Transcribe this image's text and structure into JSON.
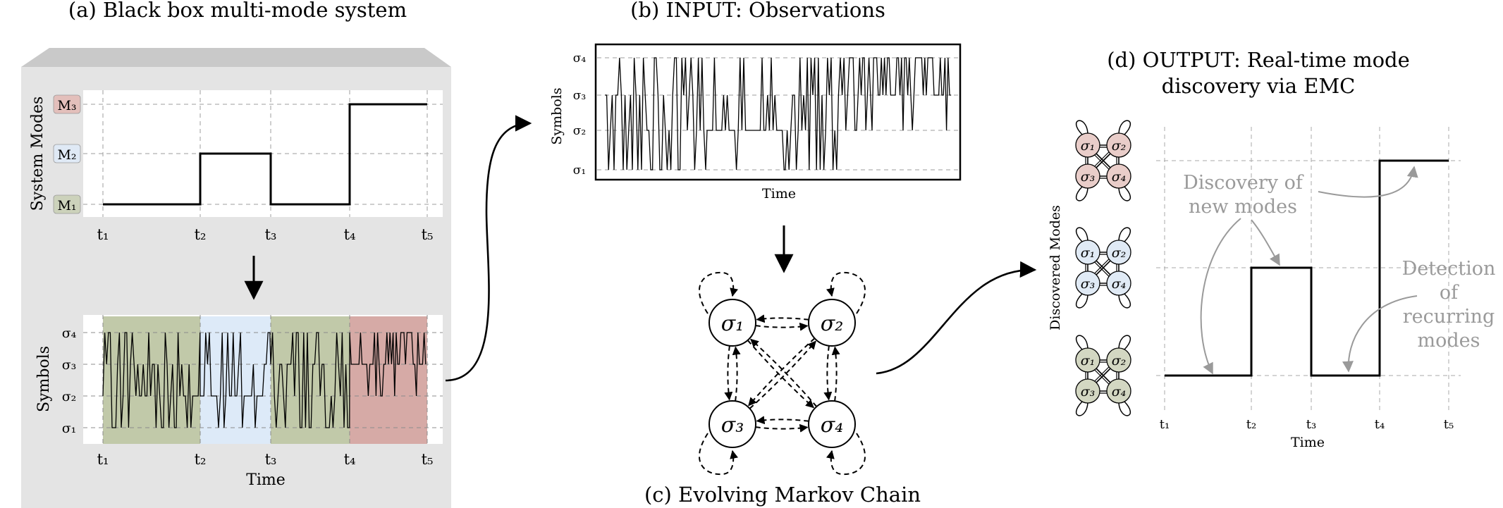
{
  "panel_a": {
    "title": "(a) Black box multi-mode system",
    "mode_axis_label": "System Modes",
    "modes": [
      {
        "label": "M₁",
        "color": "#ccd2bb"
      },
      {
        "label": "M₂",
        "color": "#dfe9f5"
      },
      {
        "label": "M₃",
        "color": "#e3bfbb"
      }
    ],
    "time_ticks": [
      "t₁",
      "t₂",
      "t₃",
      "t₄",
      "t₅"
    ],
    "mode_sequence": [
      0,
      1,
      0,
      2
    ],
    "symbol_axis_label": "Symbols",
    "symbol_ticks": [
      "σ₁",
      "σ₂",
      "σ₃",
      "σ₄"
    ],
    "x_label": "Time",
    "segment_colors": [
      "#c1c9a9",
      "#ddeaf8",
      "#d6aaa6"
    ]
  },
  "panel_b": {
    "title": "(b) INPUT: Observations",
    "y_label": "Symbols",
    "x_label": "Time",
    "symbol_ticks": [
      "σ₁",
      "σ₂",
      "σ₃",
      "σ₄"
    ]
  },
  "panel_c": {
    "title": "(c) Evolving Markov Chain",
    "states": [
      "σ₁",
      "σ₂",
      "σ₃",
      "σ₄"
    ]
  },
  "panel_d": {
    "title_line1": "(d) OUTPUT: Real-time mode",
    "title_line2": "discovery via EMC",
    "y_label": "Discovered Modes",
    "x_label": "Time",
    "time_ticks": [
      "t₁",
      "t₂",
      "t₃",
      "t₄",
      "t₅"
    ],
    "mini_chain_states": [
      "σ₁",
      "σ₂",
      "σ₃",
      "σ₄"
    ],
    "mini_chain_colors": [
      "#e9cdc9",
      "#e0eaf5",
      "#d3d7c2"
    ],
    "annotation_discovery": [
      "Discovery of",
      "new modes"
    ],
    "annotation_detection": [
      "Detection",
      "of",
      "recurring",
      "modes"
    ],
    "annotation_color": "#9a9a9a"
  }
}
